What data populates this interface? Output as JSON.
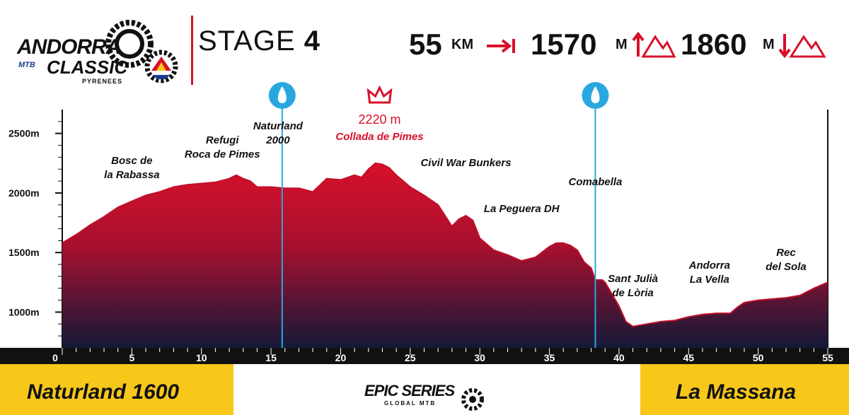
{
  "header": {
    "logo_line1": "ANDORRA",
    "logo_mtb": "MTB",
    "logo_line2": "CLASSIC",
    "logo_tag": "PYRENEES",
    "stage_label": "STAGE",
    "stage_number": "4",
    "distance_value": "55",
    "distance_unit": "KM",
    "ascent_value": "1570",
    "ascent_unit": "M",
    "descent_value": "1860",
    "descent_unit": "M"
  },
  "footer": {
    "start": "Naturland 1600",
    "finish": "La Massana",
    "brand": "EPIC SERIES",
    "brand_sub": "GLOBAL MTB"
  },
  "colors": {
    "accent": "#d8102a",
    "yellow": "#f7c71a",
    "water_blue": "#29a8e0",
    "profile_top": "#d8102a",
    "profile_bottom": "#141838",
    "axis_bar": "#111111"
  },
  "chart_data": {
    "type": "area",
    "title": "STAGE 4",
    "xlabel": "km",
    "ylabel": "m",
    "xlim": [
      0,
      55
    ],
    "ylim": [
      700,
      2700
    ],
    "x_ticks": [
      0,
      5,
      10,
      15,
      20,
      25,
      30,
      35,
      40,
      45,
      50,
      55
    ],
    "x_tick_labels": [
      "0",
      "5",
      "10",
      "15",
      "20",
      "25",
      "30",
      "35",
      "40",
      "45",
      "50",
      "55"
    ],
    "y_ticks": [
      1000,
      1500,
      2000,
      2500
    ],
    "y_tick_labels": [
      "1000m",
      "1500m",
      "2000m",
      "2500m"
    ],
    "x": [
      0,
      1,
      2,
      3,
      4,
      5,
      6,
      7,
      8,
      9,
      10,
      11,
      12,
      12.5,
      13,
      13.5,
      14,
      15,
      16,
      17,
      18,
      19,
      20,
      21,
      21.5,
      22,
      22.5,
      23,
      23.5,
      24,
      25,
      26,
      27,
      28,
      28.5,
      29,
      29.5,
      30,
      31,
      32,
      33,
      34,
      35,
      35.5,
      36,
      36.5,
      37,
      37.5,
      38,
      38.3,
      38.8,
      39,
      39.5,
      40,
      40.5,
      41,
      42,
      43,
      44,
      45,
      46,
      47,
      48,
      48.5,
      49,
      50,
      51,
      52,
      53,
      53.5,
      54,
      55
    ],
    "y": [
      1580,
      1650,
      1730,
      1800,
      1880,
      1930,
      1980,
      2010,
      2050,
      2070,
      2080,
      2090,
      2120,
      2150,
      2120,
      2100,
      2050,
      2050,
      2040,
      2040,
      2010,
      2120,
      2110,
      2150,
      2130,
      2200,
      2250,
      2240,
      2210,
      2150,
      2050,
      1980,
      1900,
      1720,
      1780,
      1810,
      1770,
      1620,
      1520,
      1480,
      1430,
      1460,
      1550,
      1580,
      1580,
      1560,
      1520,
      1420,
      1370,
      1270,
      1270,
      1250,
      1150,
      1050,
      920,
      880,
      900,
      920,
      930,
      960,
      980,
      990,
      990,
      1040,
      1080,
      1100,
      1110,
      1120,
      1140,
      1170,
      1200,
      1250
    ],
    "peak": {
      "label": "2220 m",
      "sublabel": "Collada de Pimes",
      "x": 22.8
    },
    "water_points": [
      15.8,
      38.3
    ],
    "annotations": [
      {
        "text": "Bosc de",
        "text2": "la Rabassa",
        "x": 5
      },
      {
        "text": "Refugi",
        "text2": "Roca de Pimes",
        "x": 11.5
      },
      {
        "text": "Naturland",
        "text2": "2000",
        "x": 15.5
      },
      {
        "text": "Civil War Bunkers",
        "text2": "",
        "x": 29
      },
      {
        "text": "La Peguera DH",
        "text2": "",
        "x": 33
      },
      {
        "text": "Comabella",
        "text2": "",
        "x": 38.3
      },
      {
        "text": "Sant Julià",
        "text2": "de Lòria",
        "x": 41
      },
      {
        "text": "Andorra",
        "text2": "La Vella",
        "x": 46.5
      },
      {
        "text": "Rec",
        "text2": "del Sola",
        "x": 52
      }
    ]
  }
}
